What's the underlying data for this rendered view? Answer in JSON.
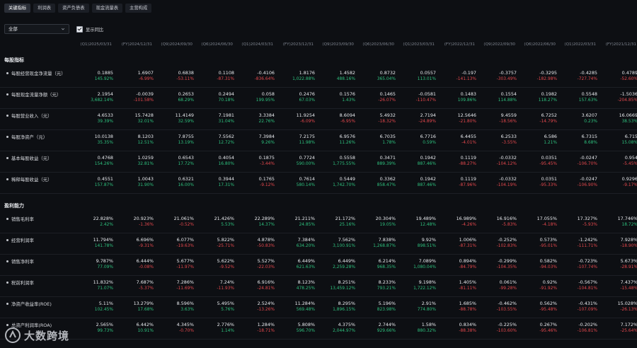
{
  "tabs": [
    {
      "label": "关键指标",
      "active": true
    },
    {
      "label": "利润表",
      "active": false
    },
    {
      "label": "资产负债表",
      "active": false
    },
    {
      "label": "现金流量表",
      "active": false
    },
    {
      "label": "主营构成",
      "active": false
    }
  ],
  "filter": {
    "value": "全部"
  },
  "yoy_toggle": {
    "label": "显示同比",
    "checked": true
  },
  "columns": [
    "(Q1)2025/03/31",
    "(FY)2024/12/31",
    "(Q9)2024/09/30",
    "(Q6)2024/06/30",
    "(Q1)2024/03/31",
    "(FY)2023/12/31",
    "(Q9)2023/09/30",
    "(Q6)2023/06/30",
    "(Q1)2023/03/31",
    "(FY)2022/12/31",
    "(Q9)2022/09/30",
    "(Q6)2022/06/30",
    "(Q1)2022/03/31",
    "(FY)2021/12/31"
  ],
  "sections": [
    {
      "title": "每股指标",
      "metrics": [
        {
          "label": "每股经营现金净流量（元）",
          "values": [
            "0.1885",
            "1.6907",
            "0.6838",
            "0.1108",
            "-0.4106",
            "1.8176",
            "1.4582",
            "0.8732",
            "0.0557",
            "-0.197",
            "-0.3757",
            "-0.3295",
            "-0.4285",
            "0.4789"
          ],
          "yoy": [
            "145.92%",
            "-6.99%",
            "-53.11%",
            "-87.31%",
            "-836.64%",
            "1,022.88%",
            "488.16%",
            "365.04%",
            "113.01%",
            "-141.13%",
            "-303.49%",
            "-182.98%",
            "-727.74%",
            "-52.60%"
          ]
        },
        {
          "label": "每股现金流量净额（元）",
          "values": [
            "2.1954",
            "-0.0039",
            "0.2653",
            "0.2494",
            "0.058",
            "0.2476",
            "0.1576",
            "0.1465",
            "-0.0581",
            "0.1483",
            "0.1554",
            "0.1982",
            "0.5548",
            "-1.5036"
          ],
          "yoy": [
            "3,682.14%",
            "-101.58%",
            "68.29%",
            "70.18%",
            "199.95%",
            "67.03%",
            "1.43%",
            "-26.07%",
            "-110.47%",
            "109.86%",
            "114.88%",
            "118.27%",
            "157.63%",
            "-204.85%"
          ]
        },
        {
          "label": "每股营业收入（元）",
          "values": [
            "4.6533",
            "15.7428",
            "11.4149",
            "7.1981",
            "3.3384",
            "11.9254",
            "8.6094",
            "5.4932",
            "2.7194",
            "12.5646",
            "9.4559",
            "6.7252",
            "3.6207",
            "16.0669"
          ],
          "yoy": [
            "39.39%",
            "32.01%",
            "32.59%",
            "31.04%",
            "22.76%",
            "-6.09%",
            "-6.95%",
            "-18.32%",
            "-24.89%",
            "-21.80%",
            "-18.56%",
            "-14.79%",
            "0.23%",
            "38.53%"
          ]
        },
        {
          "label": "每股净资产（元）",
          "values": [
            "10.0138",
            "8.1203",
            "7.8755",
            "7.5562",
            "7.3984",
            "7.2175",
            "6.9576",
            "6.7035",
            "6.7716",
            "6.4455",
            "6.2533",
            "6.586",
            "6.7315",
            "6.715"
          ],
          "yoy": [
            "35.35%",
            "12.51%",
            "13.19%",
            "12.72%",
            "9.26%",
            "11.98%",
            "11.26%",
            "1.78%",
            "0.59%",
            "-4.01%",
            "-3.55%",
            "1.21%",
            "8.68%",
            "15.08%"
          ]
        },
        {
          "label": "基本每股收益（元）",
          "values": [
            "0.4768",
            "1.0259",
            "0.6543",
            "0.4054",
            "0.1875",
            "0.7724",
            "0.5558",
            "0.3471",
            "0.1942",
            "0.1119",
            "-0.0332",
            "0.0351",
            "-0.0247",
            "0.954"
          ],
          "yoy": [
            "154.26%",
            "32.81%",
            "17.72%",
            "16.80%",
            "-3.44%",
            "590.00%",
            "1,775.55%",
            "889.39%",
            "887.46%",
            "-88.27%",
            "-104.12%",
            "-95.45%",
            "-106.70%",
            "-5.45%"
          ]
        },
        {
          "label": "稀释每股收益（元）",
          "values": [
            "0.4551",
            "1.0043",
            "0.6321",
            "0.3944",
            "0.1765",
            "0.7614",
            "0.5449",
            "0.3362",
            "0.1942",
            "0.1119",
            "-0.0332",
            "0.0351",
            "-0.0247",
            "0.9296"
          ],
          "yoy": [
            "157.87%",
            "31.90%",
            "16.00%",
            "17.31%",
            "-9.12%",
            "580.14%",
            "1,742.70%",
            "858.47%",
            "887.46%",
            "-87.96%",
            "-104.19%",
            "-95.33%",
            "-106.90%",
            "-9.17%"
          ]
        }
      ]
    },
    {
      "title": "盈利能力",
      "metrics": [
        {
          "label": "销售毛利率",
          "values": [
            "22.828%",
            "20.923%",
            "21.061%",
            "21.426%",
            "22.289%",
            "21.211%",
            "21.172%",
            "20.304%",
            "19.489%",
            "16.989%",
            "16.916%",
            "17.055%",
            "17.327%",
            "17.746%"
          ],
          "yoy": [
            "2.42%",
            "-1.36%",
            "-0.52%",
            "5.53%",
            "14.37%",
            "24.85%",
            "25.16%",
            "19.05%",
            "12.48%",
            "-4.26%",
            "-5.83%",
            "-4.18%",
            "-5.93%",
            "18.72%"
          ]
        },
        {
          "label": "经营利润率",
          "values": [
            "11.794%",
            "6.696%",
            "6.077%",
            "5.822%",
            "4.878%",
            "7.384%",
            "7.562%",
            "7.838%",
            "9.92%",
            "1.006%",
            "-0.252%",
            "0.573%",
            "-1.242%",
            "7.928%"
          ],
          "yoy": [
            "141.78%",
            "-9.31%",
            "-19.63%",
            "-25.71%",
            "-50.83%",
            "634.20%",
            "3,100.91%",
            "1,268.87%",
            "898.51%",
            "-87.31%",
            "-102.83%",
            "-95.01%",
            "-111.71%",
            "-18.90%"
          ]
        },
        {
          "label": "销售净利率",
          "values": [
            "9.787%",
            "6.444%",
            "5.677%",
            "5.622%",
            "5.527%",
            "6.449%",
            "6.449%",
            "6.214%",
            "7.089%",
            "0.894%",
            "-0.299%",
            "0.582%",
            "-0.723%",
            "5.673%"
          ],
          "yoy": [
            "77.09%",
            "-0.08%",
            "-11.97%",
            "-9.52%",
            "-22.03%",
            "621.63%",
            "2,259.28%",
            "968.35%",
            "1,080.04%",
            "-84.79%",
            "-104.35%",
            "-94.03%",
            "-107.74%",
            "-28.91%"
          ]
        },
        {
          "label": "税前利润率",
          "values": [
            "11.832%",
            "7.687%",
            "7.286%",
            "7.24%",
            "6.916%",
            "8.123%",
            "8.251%",
            "8.233%",
            "9.198%",
            "1.405%",
            "0.061%",
            "0.92%",
            "-0.567%",
            "7.437%"
          ],
          "yoy": [
            "71.07%",
            "-5.37%",
            "-11.69%",
            "-11.93%",
            "-24.81%",
            "478.25%",
            "13,459.12%",
            "793.21%",
            "1,722.12%",
            "-81.11%",
            "-99.28%",
            "-91.92%",
            "-104.81%",
            "-15.48%"
          ]
        },
        {
          "label": "净资产收益率(ROE)",
          "values": [
            "5.11%",
            "13.279%",
            "8.596%",
            "5.495%",
            "2.524%",
            "11.284%",
            "8.295%",
            "5.196%",
            "2.91%",
            "1.685%",
            "-0.462%",
            "0.562%",
            "-0.431%",
            "15.028%"
          ],
          "yoy": [
            "102.45%",
            "17.68%",
            "3.63%",
            "5.76%",
            "-13.26%",
            "569.48%",
            "1,896.15%",
            "823.98%",
            "774.80%",
            "-88.78%",
            "-103.55%",
            "-95.48%",
            "-107.09%",
            "-26.13%"
          ]
        },
        {
          "label": "总资产利润率(ROA)",
          "values": [
            "2.565%",
            "6.442%",
            "4.345%",
            "2.776%",
            "1.284%",
            "5.808%",
            "4.375%",
            "2.744%",
            "1.58%",
            "0.834%",
            "-0.225%",
            "0.267%",
            "-0.202%",
            "7.172%"
          ],
          "yoy": [
            "99.73%",
            "10.91%",
            "-0.70%",
            "1.14%",
            "-18.71%",
            "596.70%",
            "2,044.97%",
            "929.66%",
            "880.32%",
            "-88.38%",
            "-103.60%",
            "-95.46%",
            "-106.81%",
            "-25.64%"
          ]
        }
      ]
    }
  ],
  "watermark": {
    "text": "大数跨境"
  },
  "colors": {
    "positive": "#2ec27e",
    "negative": "#e5484d",
    "background": "#0d0f13"
  }
}
